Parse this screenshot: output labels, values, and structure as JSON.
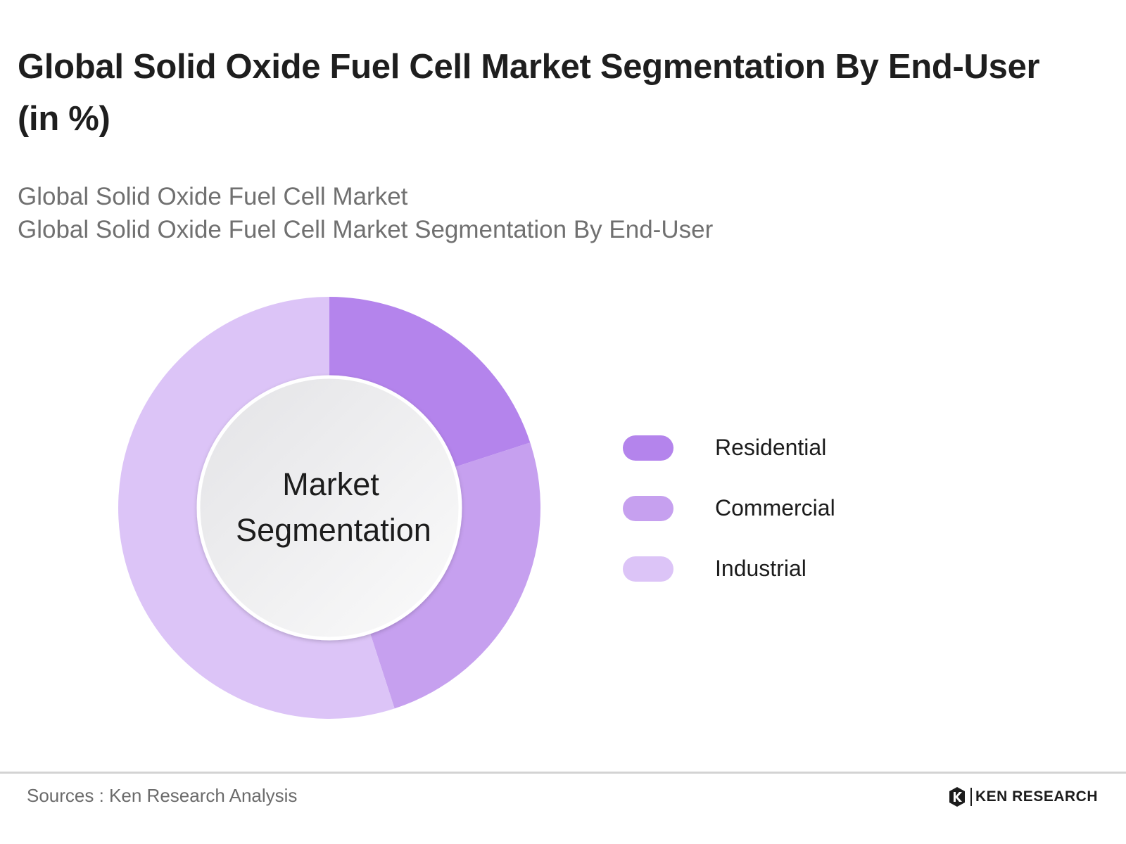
{
  "header": {
    "title": "Global Solid Oxide Fuel Cell Market Segmentation By End-User (in %)",
    "subtitle_line1": "Global Solid Oxide Fuel Cell Market",
    "subtitle_line2": "Global Solid Oxide Fuel Cell Market Segmentation By End-User"
  },
  "chart_data": {
    "type": "pie",
    "variant": "donut",
    "center_label_line1": "Market",
    "center_label_line2": "Segmentation",
    "start_angle_deg": 0,
    "direction": "clockwise",
    "legend_position": "right",
    "slices": [
      {
        "label": "Residential",
        "value": 20,
        "color": "#b484ec"
      },
      {
        "label": "Commercial",
        "value": 25,
        "color": "#c6a0ef"
      },
      {
        "label": "Industrial",
        "value": 55,
        "color": "#dcc4f7"
      }
    ]
  },
  "footer": {
    "source": "Sources : Ken Research Analysis",
    "brand": "KEN RESEARCH"
  }
}
